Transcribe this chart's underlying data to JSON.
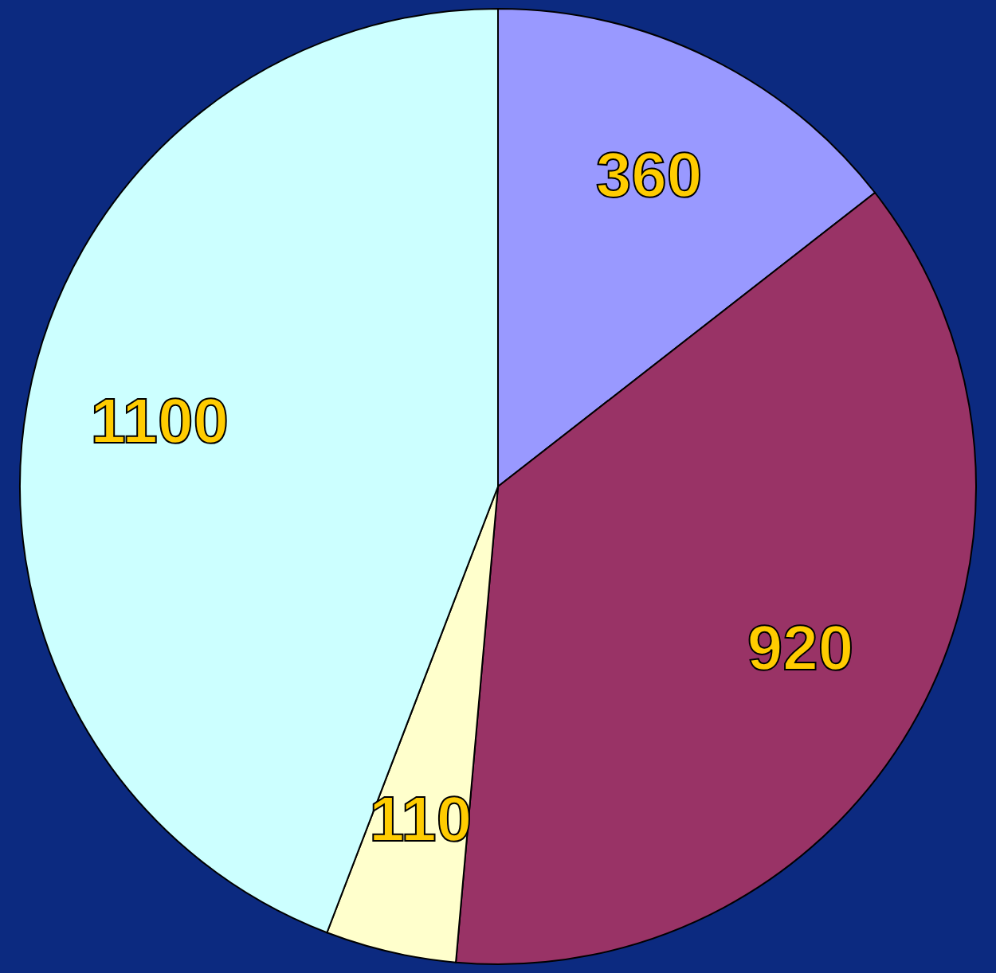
{
  "chart_data": {
    "type": "pie",
    "categories": [
      null,
      null,
      null,
      null
    ],
    "values": [
      360,
      920,
      110,
      1100
    ],
    "colors": [
      "#9999ff",
      "#993366",
      "#ffffcc",
      "#ccffff"
    ],
    "data_labels": true
  }
}
